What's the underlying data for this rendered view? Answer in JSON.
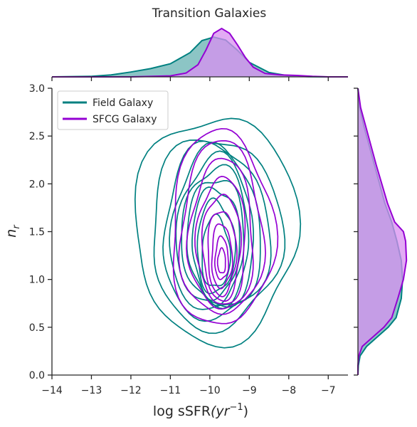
{
  "chart_data": {
    "type": "kde_joint",
    "title": "Transition Galaxies",
    "xlabel": "log sSFR",
    "xlabel_unit": "(yr",
    "xlabel_exp": "−1",
    "xlabel_close": ")",
    "ylabel": "n",
    "ylabel_sub": "r",
    "xlim": [
      -14,
      -6.5
    ],
    "ylim": [
      0,
      3.0
    ],
    "xticks": [
      -14,
      -13,
      -12,
      -11,
      -10,
      -9,
      -8,
      -7
    ],
    "xtick_labels": [
      "−14",
      "−13",
      "−12",
      "−11",
      "−10",
      "−9",
      "−8",
      "−7"
    ],
    "yticks": [
      0,
      0.5,
      1.0,
      1.5,
      2.0,
      2.5,
      3.0
    ],
    "ytick_labels": [
      "0.0",
      "0.5",
      "1.0",
      "1.5",
      "2.0",
      "2.5",
      "3.0"
    ],
    "legend_position": "upper-left",
    "series": [
      {
        "name": "Field Galaxy",
        "color": "#008080",
        "fill": "#66b2b2",
        "center": [
          -9.85,
          1.25
        ],
        "contours": [
          {
            "rx": 2.05,
            "ry": 1.28,
            "cy": 1.45
          },
          {
            "rx": 1.65,
            "ry": 1.08,
            "cy": 1.42
          },
          {
            "rx": 1.35,
            "ry": 0.98,
            "cy": 1.42
          },
          {
            "rx": 1.15,
            "ry": 0.92,
            "cy": 1.43
          },
          {
            "rx": 0.98,
            "ry": 0.85,
            "cy": 1.42
          },
          {
            "rx": 0.85,
            "ry": 0.78,
            "cy": 1.4
          },
          {
            "rx": 0.72,
            "ry": 0.7,
            "cy": 1.38
          },
          {
            "rx": 0.6,
            "ry": 0.62,
            "cy": 1.35
          },
          {
            "rx": 0.48,
            "ry": 0.52,
            "cy": 1.3
          },
          {
            "rx": 0.36,
            "ry": 0.4,
            "cy": 1.25
          }
        ],
        "x_marginal": {
          "x": [
            -14,
            -13,
            -12.5,
            -12,
            -11.5,
            -11,
            -10.5,
            -10.2,
            -9.9,
            -9.6,
            -9.3,
            -9,
            -8.5,
            -8,
            -7.5,
            -7,
            -6.5
          ],
          "density": [
            0.0,
            0.01,
            0.04,
            0.1,
            0.17,
            0.27,
            0.5,
            0.75,
            0.82,
            0.76,
            0.55,
            0.3,
            0.09,
            0.02,
            0.005,
            0.0,
            0.0
          ]
        },
        "y_marginal": {
          "y": [
            0,
            0.1,
            0.2,
            0.3,
            0.4,
            0.5,
            0.6,
            0.8,
            1.0,
            1.2,
            1.4,
            1.6,
            1.8,
            2.0,
            2.2,
            2.4,
            2.6,
            2.8,
            3.0
          ],
          "density": [
            0.0,
            0.01,
            0.05,
            0.2,
            0.45,
            0.7,
            0.88,
            1.0,
            1.03,
            1.0,
            0.9,
            0.78,
            0.62,
            0.5,
            0.38,
            0.26,
            0.14,
            0.04,
            0.0
          ]
        }
      },
      {
        "name": "SFCG Galaxy",
        "color": "#9400d3",
        "fill": "#d88ff0",
        "center": [
          -9.7,
          1.2
        ],
        "contours": [
          {
            "rx": 1.3,
            "ry": 1.1,
            "cy": 1.45
          },
          {
            "rx": 1.05,
            "ry": 0.98,
            "cy": 1.45
          },
          {
            "rx": 0.82,
            "ry": 0.85,
            "cy": 1.4
          },
          {
            "rx": 0.62,
            "ry": 0.72,
            "cy": 1.35
          },
          {
            "rx": 0.48,
            "ry": 0.6,
            "cy": 1.3
          },
          {
            "rx": 0.36,
            "ry": 0.48,
            "cy": 1.25
          },
          {
            "rx": 0.26,
            "ry": 0.36,
            "cy": 1.22
          },
          {
            "rx": 0.17,
            "ry": 0.24,
            "cy": 1.2
          },
          {
            "rx": 0.1,
            "ry": 0.14,
            "cy": 1.18
          }
        ],
        "x_marginal": {
          "x": [
            -14,
            -12,
            -11,
            -10.6,
            -10.3,
            -10.1,
            -9.9,
            -9.7,
            -9.5,
            -9.3,
            -9.1,
            -8.9,
            -8.6,
            -8.2,
            -7.8,
            -7.4,
            -7,
            -6.5
          ],
          "density": [
            0.0,
            0.0,
            0.02,
            0.08,
            0.25,
            0.55,
            0.9,
            1.0,
            0.9,
            0.66,
            0.4,
            0.2,
            0.07,
            0.04,
            0.03,
            0.01,
            0.0,
            0.0
          ]
        },
        "y_marginal": {
          "y": [
            0,
            0.1,
            0.2,
            0.3,
            0.4,
            0.5,
            0.6,
            0.8,
            1.0,
            1.2,
            1.4,
            1.5,
            1.6,
            1.8,
            2.0,
            2.2,
            2.4,
            2.6,
            2.8,
            3.0
          ],
          "density": [
            0.0,
            0.0,
            0.02,
            0.1,
            0.35,
            0.6,
            0.78,
            0.92,
            1.05,
            1.12,
            1.1,
            1.05,
            0.85,
            0.68,
            0.55,
            0.42,
            0.3,
            0.18,
            0.06,
            0.0
          ]
        }
      }
    ]
  }
}
